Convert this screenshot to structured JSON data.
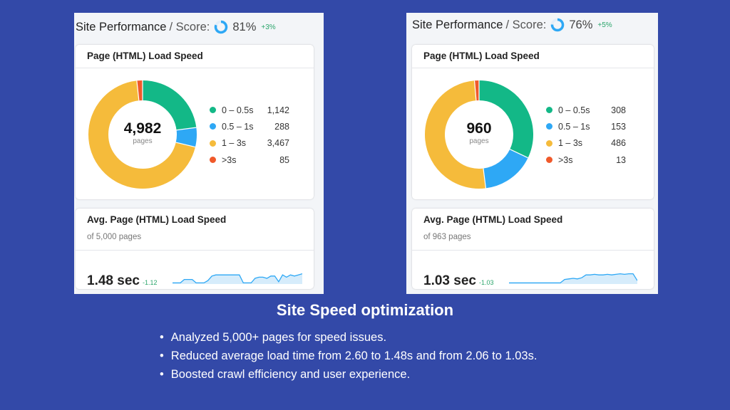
{
  "colors": {
    "background": "#3349a8",
    "fast": "#13b887",
    "medium": "#2ea8f5",
    "slow": "#f5bb3b",
    "very_slow": "#f0592a",
    "positive": "#2aa56b"
  },
  "panels": [
    {
      "title": "Site Performance",
      "score_label": "/ Score:",
      "score": "81%",
      "score_value": 81,
      "score_delta": "+3%",
      "load_speed_title": "Page (HTML) Load Speed",
      "total": "4,982",
      "total_label": "pages",
      "legend": [
        {
          "label": "0 – 0.5s",
          "value": "1,142",
          "count": 1142
        },
        {
          "label": "0.5 – 1s",
          "value": "288",
          "count": 288
        },
        {
          "label": "1 – 3s",
          "value": "3,467",
          "count": 3467
        },
        {
          "label": ">3s",
          "value": "85",
          "count": 85
        }
      ],
      "avg_title": "Avg. Page (HTML) Load Speed",
      "avg_sub": "of 5,000 pages",
      "avg_value": "1.48 sec",
      "avg_delta": "-1.12"
    },
    {
      "title": "Site Performance",
      "score_label": "/ Score:",
      "score": "76%",
      "score_value": 76,
      "score_delta": "+5%",
      "load_speed_title": "Page (HTML) Load Speed",
      "total": "960",
      "total_label": "pages",
      "legend": [
        {
          "label": "0 – 0.5s",
          "value": "308",
          "count": 308
        },
        {
          "label": "0.5 – 1s",
          "value": "153",
          "count": 153
        },
        {
          "label": "1 – 3s",
          "value": "486",
          "count": 486
        },
        {
          "label": ">3s",
          "value": "13",
          "count": 13
        }
      ],
      "avg_title": "Avg. Page (HTML) Load Speed",
      "avg_sub": "of 963 pages",
      "avg_value": "1.03 sec",
      "avg_delta": "-1.03"
    }
  ],
  "headline": "Site Speed optimization",
  "bullets": [
    "Analyzed 5,000+ pages for speed issues.",
    "Reduced average load time from 2.60 to 1.48s  and from 2.06 to 1.03s.",
    "Boosted crawl efficiency and user experience."
  ]
}
